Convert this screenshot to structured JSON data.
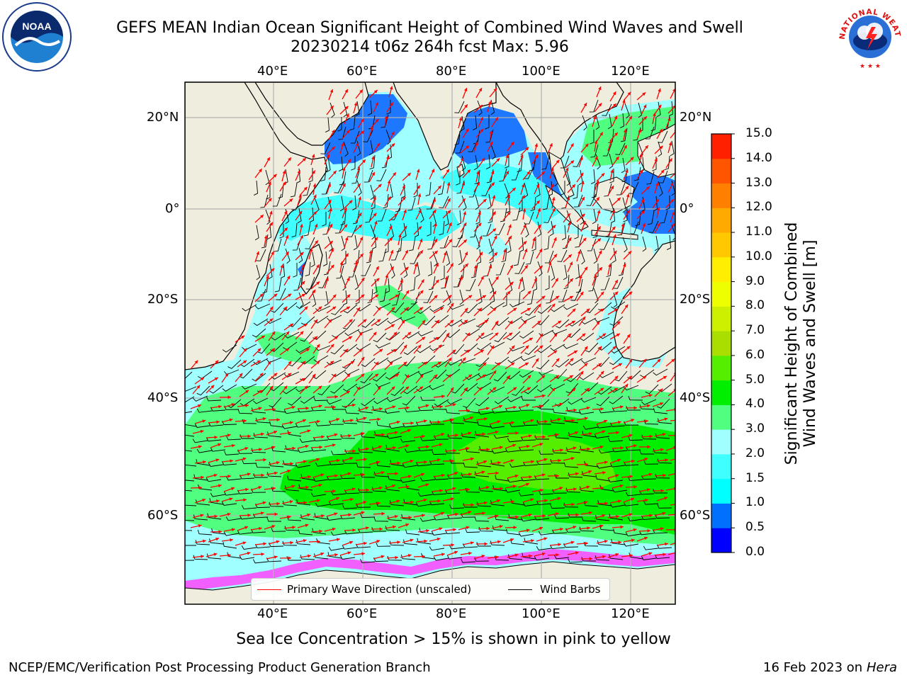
{
  "title_line1": "GEFS MEAN Indian Ocean Significant Height of Combined Wind Waves and Swell",
  "title_line2": "20230214 t06z 264h fcst   Max: 5.96",
  "logos": {
    "left": {
      "icon": "noaa-logo",
      "text": "NOAA",
      "ring_text": "NATIONAL OCEANIC AND ATMOSPHERIC ADMINISTRATION · U.S. DEPARTMENT OF COMMERCE"
    },
    "right": {
      "icon": "nws-logo",
      "ring_text": "NATIONAL WEATHER SERVICE"
    }
  },
  "map": {
    "lon_ticks": [
      "40°E",
      "60°E",
      "80°E",
      "100°E",
      "120°E"
    ],
    "lat_ticks": [
      "20°N",
      "0°",
      "20°S",
      "40°S",
      "60°S"
    ],
    "colors": {
      "land": "#efedde",
      "grid": "#b0b0b0",
      "coast": "#000000",
      "wave_arrow": "#ff0000",
      "wind_barb": "#000000",
      "ice": "#ff44ff"
    }
  },
  "legend": {
    "wave_label": "Primary Wave Direction (unscaled)",
    "barb_label": "Wind Barbs",
    "wave_color": "#ff0000",
    "barb_color": "#000000"
  },
  "colorbar": {
    "title_line1": "Significant Height of Combined",
    "title_line2": "Wind Waves and Swell [m]",
    "ticks": [
      "0.0",
      "0.5",
      "1.0",
      "1.5",
      "2.0",
      "3.0",
      "4.0",
      "5.0",
      "6.0",
      "7.0",
      "8.0",
      "9.0",
      "10.0",
      "11.0",
      "12.0",
      "13.0",
      "14.0",
      "15.0"
    ],
    "colors": [
      "#0000ff",
      "#0070ff",
      "#00ffff",
      "#40ffff",
      "#a0ffff",
      "#50ff80",
      "#00ee00",
      "#55ee00",
      "#aadd00",
      "#ccf000",
      "#eeff00",
      "#ffee00",
      "#ffc800",
      "#ffaa00",
      "#ff8000",
      "#ff5500",
      "#ff2000"
    ]
  },
  "footer": {
    "caption": "Sea Ice Concentration > 15% is shown in pink to yellow",
    "left": "NCEP/EMC/Verification Post Processing Product Generation Branch",
    "right_date": "16 Feb 2023 on",
    "right_host": "Hera"
  }
}
